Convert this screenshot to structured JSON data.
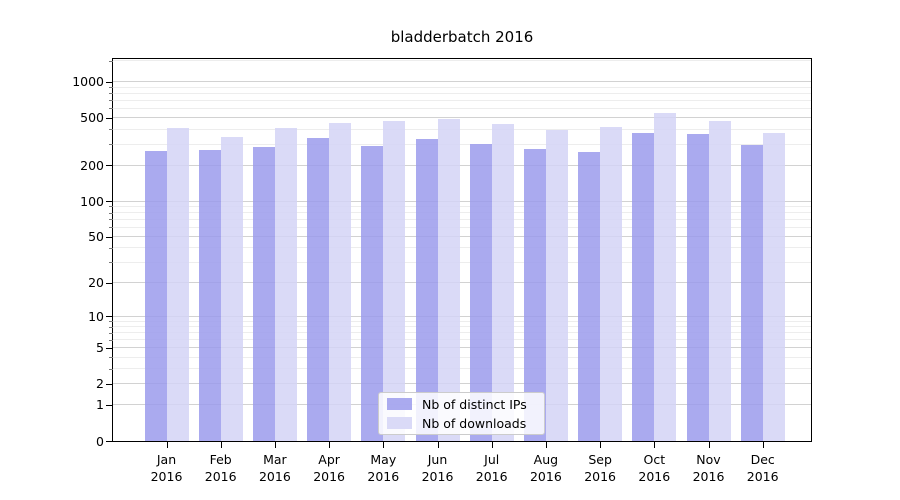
{
  "title": "bladderbatch 2016",
  "chart_data": {
    "type": "bar",
    "title": "bladderbatch 2016",
    "categories": [
      "Jan",
      "Feb",
      "Mar",
      "Apr",
      "May",
      "Jun",
      "Jul",
      "Aug",
      "Sep",
      "Oct",
      "Nov",
      "Dec"
    ],
    "year": "2016",
    "series": [
      {
        "name": "Nb of distinct IPs",
        "color": "#9b9bec",
        "values": [
          265,
          269,
          287,
          341,
          291,
          332,
          300,
          272,
          257,
          371,
          364,
          296
        ]
      },
      {
        "name": "Nb of downloads",
        "color": "#d4d4f6",
        "values": [
          408,
          343,
          408,
          455,
          470,
          486,
          444,
          395,
          422,
          546,
          473,
          371
        ]
      }
    ],
    "y_scale": "log1p",
    "y_axis_max": 1552,
    "y_ticks": [
      0,
      1,
      2,
      5,
      10,
      20,
      50,
      100,
      200,
      500,
      1000
    ],
    "y_minor_ticks": [
      3,
      4,
      6,
      7,
      8,
      9,
      30,
      40,
      60,
      70,
      80,
      90,
      300,
      400,
      600,
      700,
      800,
      900,
      1500
    ],
    "grid": true,
    "legend_position": "lower center",
    "colors": {
      "grid_major": "#d2d2d2",
      "grid_minor": "#ededed",
      "axis": "#000000",
      "legend_border": "#cccccc"
    }
  }
}
